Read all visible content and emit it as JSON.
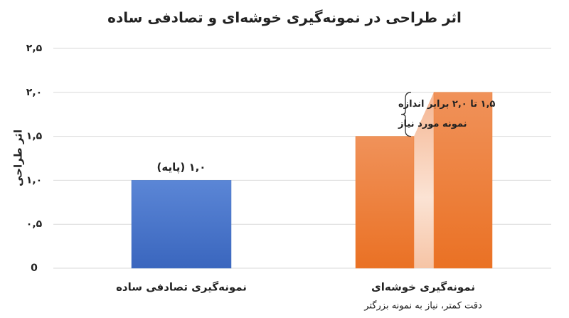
{
  "chart_data": {
    "type": "bar",
    "title": "اثر طراحی در نمونه‌گیری خوشه‌ای و تصادفی ساده",
    "y_label": "اثر طراحی",
    "categories": [
      "نمونه‌گیری تصادفی ساده",
      "نمونه‌گیری خوشه‌ای"
    ],
    "category_notes": [
      null,
      "دقت کمتر، نیاز به نمونه بزرگتر"
    ],
    "values": [
      1,
      [
        1.5,
        2
      ]
    ],
    "value_labels": [
      "۱,۰ (پایه)",
      null
    ],
    "colors": [
      "#4472c4",
      "#ed7d31"
    ],
    "annotation": [
      "۱,۵ تا ۲,۰ برابر اندازه",
      "نمونه مورد نیاز"
    ],
    "ylim": [
      0,
      2.5
    ],
    "yticks": [
      0,
      {
        "value": 0.5,
        "label": "۰,۵"
      },
      {
        "value": 1,
        "label": "۱,۰"
      },
      {
        "value": 1.5,
        "label": "۱,۵"
      },
      {
        "value": 2,
        "label": "۲,۰"
      },
      {
        "value": 2.5,
        "label": "۲,۵"
      }
    ],
    "grid": true
  }
}
